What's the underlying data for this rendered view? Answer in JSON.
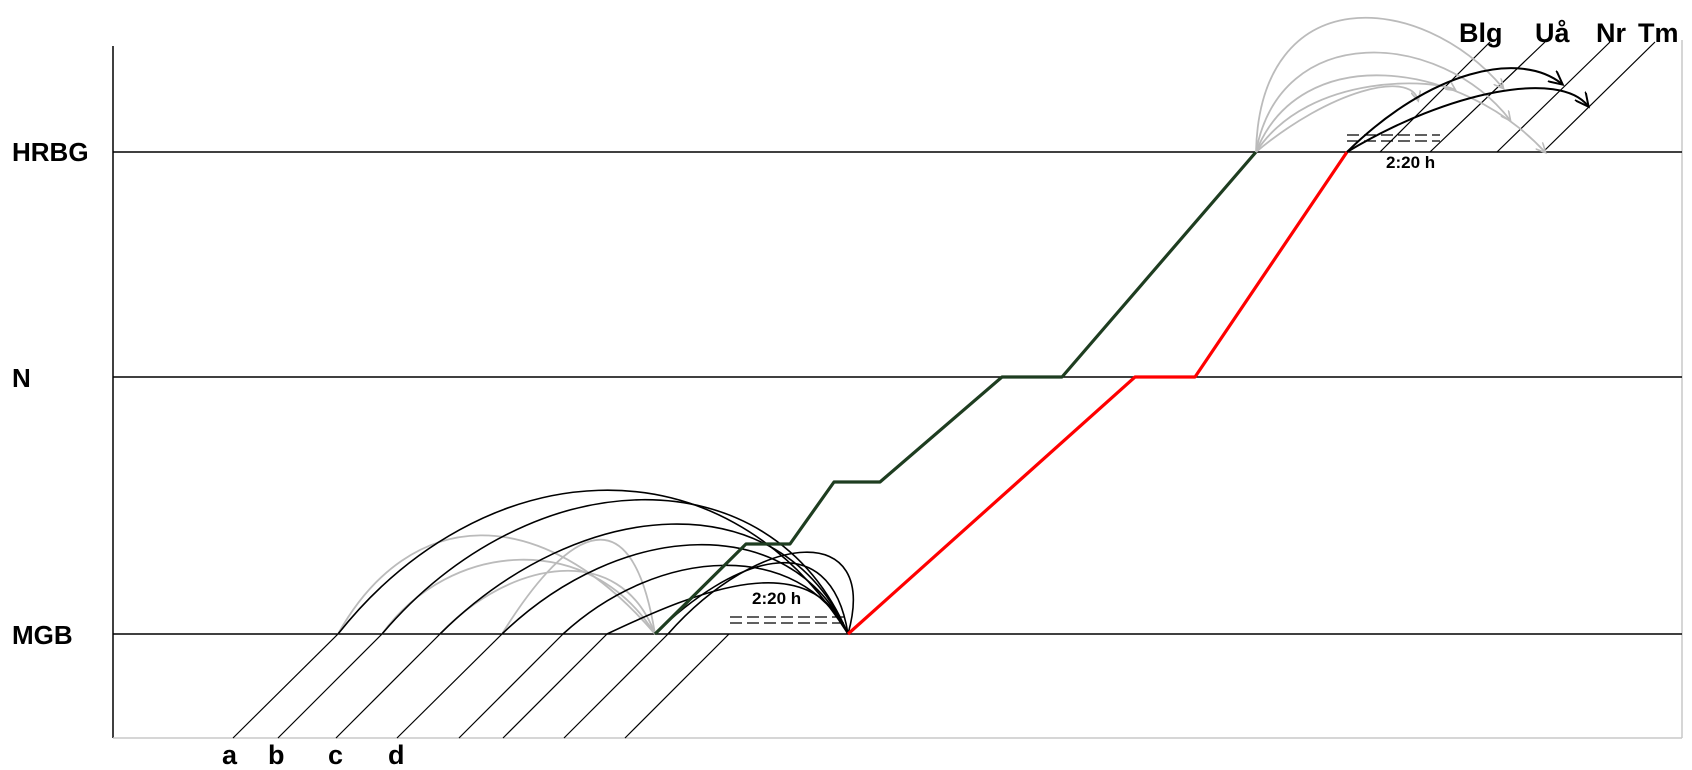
{
  "stations": [
    {
      "id": "hrbg",
      "label": "HRBG"
    },
    {
      "id": "n",
      "label": "N"
    },
    {
      "id": "mgb",
      "label": "MGB"
    }
  ],
  "top_labels": [
    "Blg",
    "Uå",
    "Nr",
    "Tm"
  ],
  "bottom_labels": [
    "a",
    "b",
    "c",
    "d"
  ],
  "durations": {
    "mgb": "2:20 h",
    "hrbg": "2:20 h"
  },
  "colors": {
    "line_green": "#1e3d20",
    "line_red": "#ff0000",
    "arc_black": "#000000",
    "arc_gray": "#bbbbbb",
    "axis_gray": "#c8c8c8"
  }
}
